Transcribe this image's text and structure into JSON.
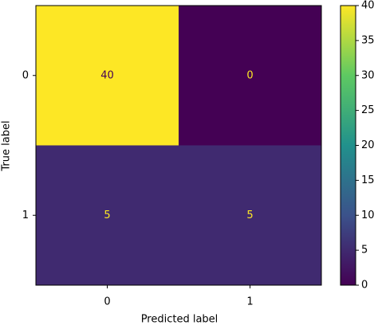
{
  "chart_data": {
    "type": "heatmap",
    "x_categories": [
      "0",
      "1"
    ],
    "y_categories": [
      "0",
      "1"
    ],
    "values": [
      [
        40,
        0
      ],
      [
        5,
        5
      ]
    ],
    "xlabel": "Predicted label",
    "ylabel": "True label",
    "colormap": "viridis",
    "clim": [
      0,
      40
    ],
    "cticks": [
      0,
      5,
      10,
      15,
      20,
      25,
      30,
      35,
      40
    ]
  }
}
